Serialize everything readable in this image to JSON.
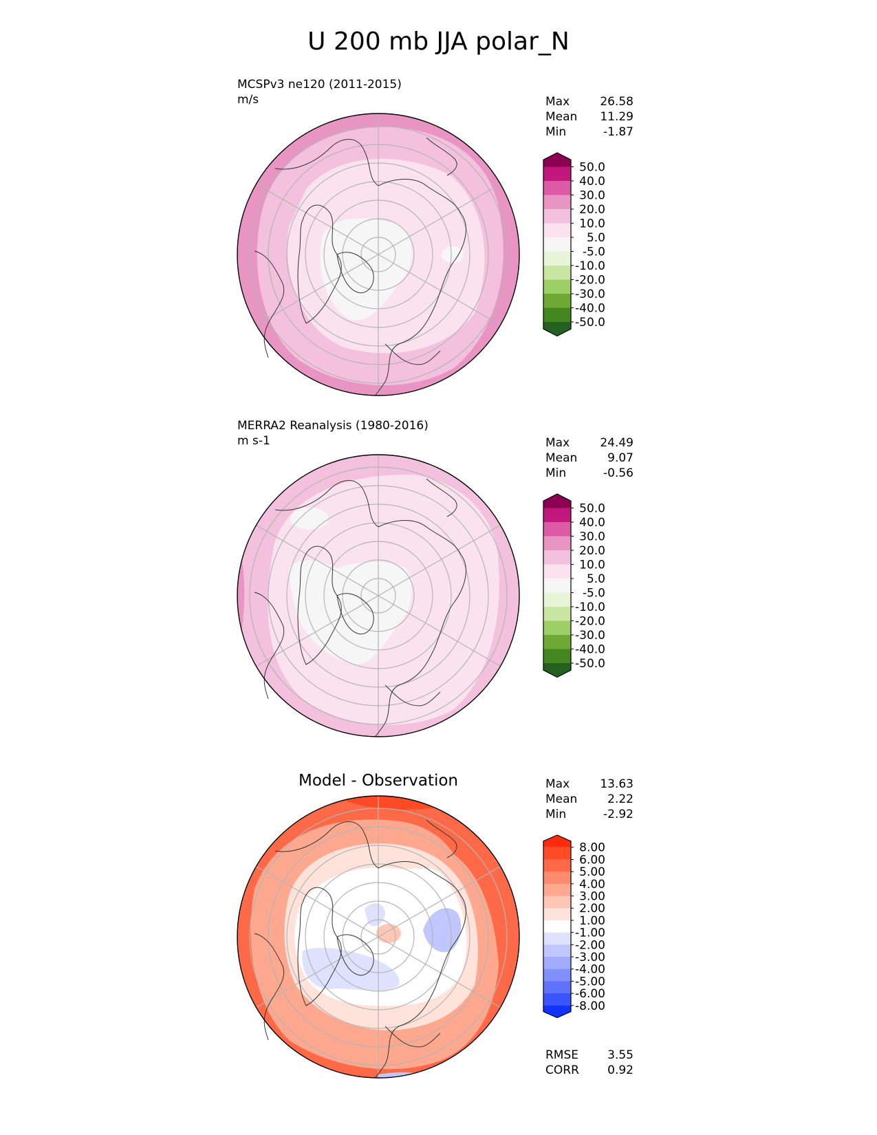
{
  "title": "U 200 mb JJA polar_N",
  "panels": [
    {
      "label_line1": "MCSPv3 ne120 (2011-2015)",
      "label_line2": "m/s",
      "stats": {
        "max_label": "Max",
        "max": "26.58",
        "mean_label": "Mean",
        "mean": "11.29",
        "min_label": "Min",
        "min": "-1.87"
      }
    },
    {
      "label_line1": "MERRA2 Reanalysis (1980-2016)",
      "label_line2": "m s-1",
      "stats": {
        "max_label": "Max",
        "max": "24.49",
        "mean_label": "Mean",
        "mean": "9.07",
        "min_label": "Min",
        "min": "-0.56"
      }
    },
    {
      "title": "Model - Observation",
      "stats": {
        "max_label": "Max",
        "max": "13.63",
        "mean_label": "Mean",
        "mean": "2.22",
        "min_label": "Min",
        "min": "-2.92"
      },
      "metrics": {
        "rmse_label": "RMSE",
        "rmse": "3.55",
        "corr_label": "CORR",
        "corr": "0.92"
      }
    }
  ],
  "chart_data": [
    {
      "type": "heatmap",
      "projection": "north polar stereographic",
      "title": "MCSPv3 ne120 (2011-2015)",
      "units": "m/s",
      "colorbar": {
        "ticks": [
          "50.0",
          "40.0",
          "30.0",
          "20.0",
          "10.0",
          "5.0",
          "-5.0",
          "-10.0",
          "-20.0",
          "-30.0",
          "-40.0",
          "-50.0"
        ],
        "colors": [
          "#8c0052",
          "#c2177d",
          "#dc5ba4",
          "#e995c4",
          "#f3c1dd",
          "#fae3ef",
          "#f6f6f6",
          "#e8f4d8",
          "#c9e7a3",
          "#9cd066",
          "#6ea935",
          "#44871f",
          "#246121"
        ]
      },
      "regions": [
        {
          "fill": "#e995c4",
          "note": "outer ring, lower latitudes"
        },
        {
          "fill": "#f3c1dd",
          "note": "mid latitudes"
        },
        {
          "fill": "#fae3ef",
          "note": "high latitudes"
        },
        {
          "fill": "#f6f6f6",
          "note": "pole region"
        }
      ],
      "stats": {
        "max": 26.58,
        "mean": 11.29,
        "min": -1.87
      }
    },
    {
      "type": "heatmap",
      "projection": "north polar stereographic",
      "title": "MERRA2 Reanalysis (1980-2016)",
      "units": "m s-1",
      "colorbar": {
        "ticks": [
          "50.0",
          "40.0",
          "30.0",
          "20.0",
          "10.0",
          "5.0",
          "-5.0",
          "-10.0",
          "-20.0",
          "-30.0",
          "-40.0",
          "-50.0"
        ],
        "colors": [
          "#8c0052",
          "#c2177d",
          "#dc5ba4",
          "#e995c4",
          "#f3c1dd",
          "#fae3ef",
          "#f6f6f6",
          "#e8f4d8",
          "#c9e7a3",
          "#9cd066",
          "#6ea935",
          "#44871f",
          "#246121"
        ]
      },
      "regions": [
        {
          "fill": "#f3c1dd",
          "note": "outer ring"
        },
        {
          "fill": "#fae3ef",
          "note": "mid/high latitudes"
        },
        {
          "fill": "#f6f6f6",
          "note": "pole region and Greenland"
        }
      ],
      "stats": {
        "max": 24.49,
        "mean": 9.07,
        "min": -0.56
      }
    },
    {
      "type": "heatmap",
      "projection": "north polar stereographic",
      "title": "Model - Observation",
      "colorbar": {
        "ticks": [
          "8.00",
          "6.00",
          "5.00",
          "4.00",
          "3.00",
          "2.00",
          "1.00",
          "-1.00",
          "-2.00",
          "-3.00",
          "-4.00",
          "-5.00",
          "-6.00",
          "-8.00"
        ],
        "colors": [
          "#fe2b0c",
          "#fe4a25",
          "#fe6a47",
          "#fe8a6d",
          "#fea88f",
          "#ffc7b5",
          "#ffe3da",
          "#ffffff",
          "#dfe2fe",
          "#c0c7fd",
          "#a1abfc",
          "#818ffb",
          "#5e72fb",
          "#3a55fc",
          "#1133fe"
        ]
      },
      "regions": [
        {
          "fill": "#fe2b0c",
          "note": "eastern outer ring"
        },
        {
          "fill": "#fe6a47",
          "note": "outer ring"
        },
        {
          "fill": "#fea88f",
          "note": "mid latitudes"
        },
        {
          "fill": "#ffffff",
          "note": "high latitudes"
        },
        {
          "fill": "#c0c7fd",
          "note": "scattered negative anomalies"
        }
      ],
      "stats": {
        "max": 13.63,
        "mean": 2.22,
        "min": -2.92,
        "rmse": 3.55,
        "corr": 0.92
      }
    }
  ]
}
